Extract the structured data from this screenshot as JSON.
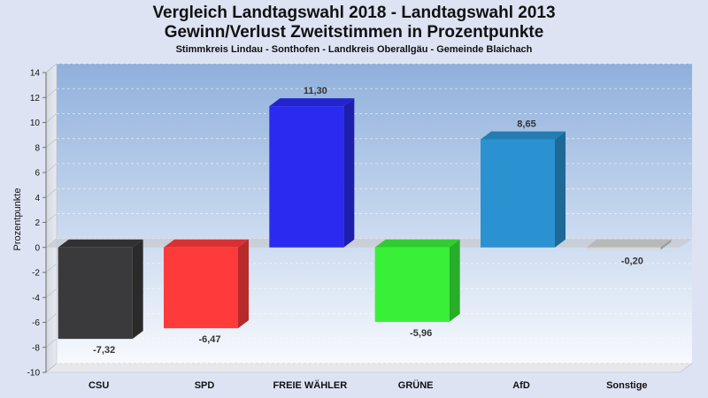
{
  "chart_data": {
    "type": "bar",
    "title": "Vergleich Landtagswahl 2018 - Landtagswahl 2013",
    "subtitle": "Gewinn/Verlust Zweitstimmen in Prozentpunkte",
    "caption": "Stimmkreis Lindau - Sonthofen - Landkreis Oberallgäu - Gemeinde Blaichach",
    "xlabel": "",
    "ylabel": "Prozentpunkte",
    "ylim": [
      -10,
      14
    ],
    "yticks": [
      14,
      12,
      10,
      8,
      6,
      4,
      2,
      0,
      -2,
      -4,
      -6,
      -8,
      -10
    ],
    "categories": [
      "CSU",
      "SPD",
      "FREIE WÄHLER",
      "GRÜNE",
      "AfD",
      "Sonstige"
    ],
    "values": [
      -7.32,
      -6.47,
      11.3,
      -5.96,
      8.65,
      -0.2
    ],
    "value_labels": [
      "-7,32",
      "-6,47",
      "11,30",
      "-5,96",
      "8,65",
      "-0,20"
    ],
    "colors": [
      "#3a3a3c",
      "#ff3a3a",
      "#2a2af0",
      "#38f038",
      "#2a92d0",
      "#d8d8d8"
    ],
    "grid": true,
    "legend": "none"
  }
}
